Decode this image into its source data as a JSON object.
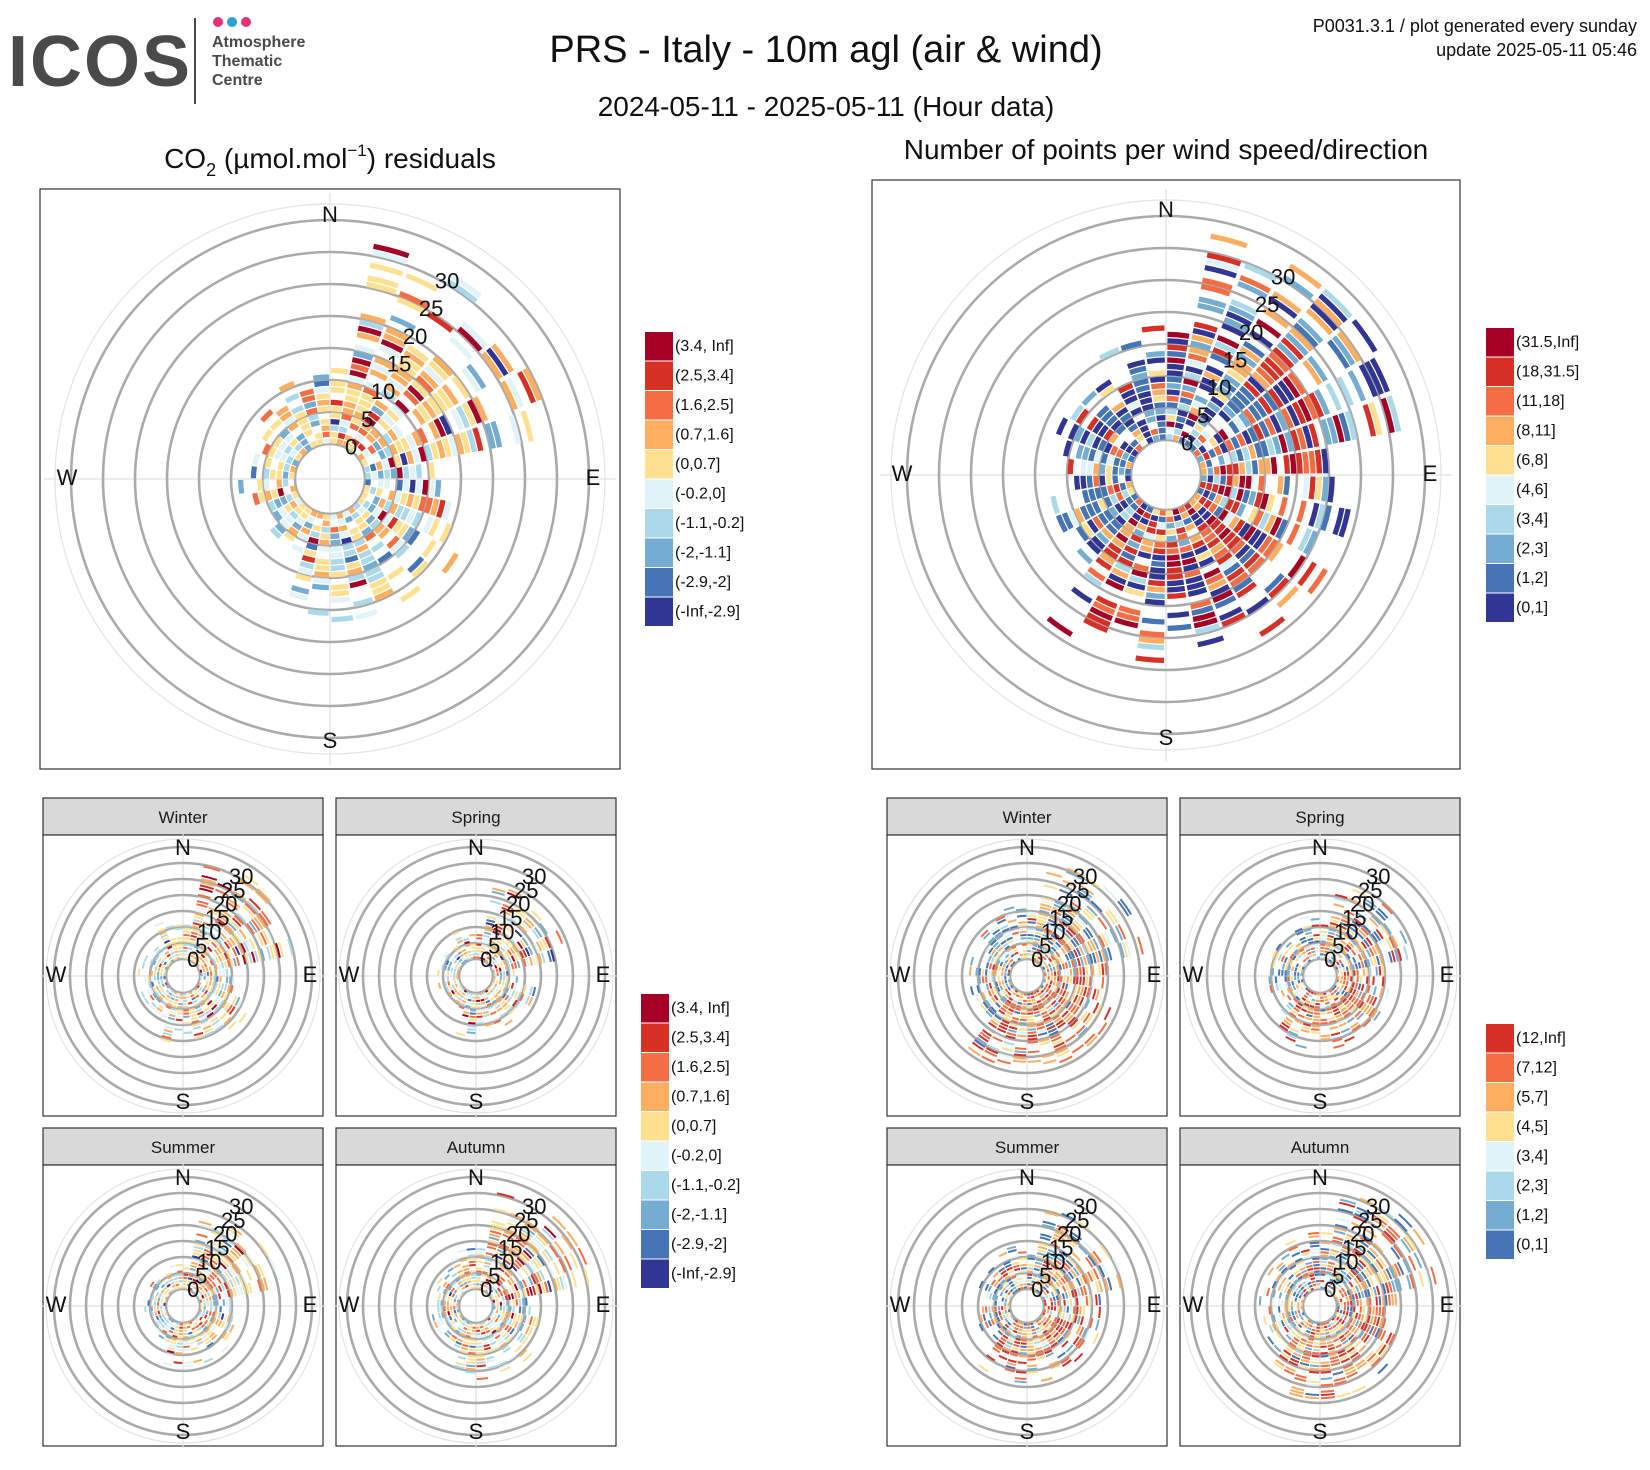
{
  "logo": {
    "word": "ICOS",
    "line1": "Atmosphere",
    "line2": "Thematic",
    "line3": "Centre",
    "dot_colors": [
      "#e5307a",
      "#2a9fd8",
      "#e5307a"
    ]
  },
  "header": {
    "title": "PRS - Italy - 10m agl (air & wind)",
    "subtitle": "2024-05-11 - 2025-05-11 (Hour data)",
    "info_line1": "P0031.3.1 / plot generated every sunday",
    "info_line2": "update  2025-05-11 05:46"
  },
  "panels": {
    "left_title_prefix": "CO",
    "left_title_sub": "2",
    "left_title_mid": " (µmol.mol",
    "left_title_sup": "−1",
    "left_title_suffix": ") residuals",
    "right_title": "Number of points per wind speed/direction"
  },
  "compass": {
    "n": "N",
    "e": "E",
    "s": "S",
    "w": "W"
  },
  "facets": [
    "Winter",
    "Spring",
    "Summer",
    "Autumn"
  ],
  "chart_data": [
    {
      "type": "polar-heatmap",
      "id": "co2-residuals-annual",
      "variable": "CO2 residuals",
      "radial_axis": "wind speed",
      "angular_axis": "wind direction",
      "radial_ticks": [
        0,
        5,
        10,
        15,
        20,
        25,
        30
      ],
      "legend": [
        {
          "label": "(3.4, Inf]",
          "color": "#a50026"
        },
        {
          "label": "(2.5,3.4]",
          "color": "#d73027"
        },
        {
          "label": "(1.6,2.5]",
          "color": "#f46d43"
        },
        {
          "label": "(0.7,1.6]",
          "color": "#fdae61"
        },
        {
          "label": "(0,0.7]",
          "color": "#fee090"
        },
        {
          "label": "(-0.2,0]",
          "color": "#e0f3f8"
        },
        {
          "label": "(-1.1,-0.2]",
          "color": "#abd9e9"
        },
        {
          "label": "(-2,-1.1]",
          "color": "#74add1"
        },
        {
          "label": "(-2.9,-2]",
          "color": "#4575b4"
        },
        {
          "label": "(-Inf,-2.9]",
          "color": "#313695"
        }
      ],
      "sectors": [
        {
          "dir": [
            10,
            80
          ],
          "max_speed": 32,
          "weights": [
            1,
            1,
            2,
            4,
            4,
            3,
            2,
            1,
            0.3,
            0.3
          ]
        },
        {
          "dir": [
            80,
            100
          ],
          "max_speed": 12,
          "weights": [
            0.2,
            0.3,
            0.4,
            0.6,
            2,
            2,
            3,
            2,
            1,
            0.3
          ]
        },
        {
          "dir": [
            100,
            200
          ],
          "max_speed": 18,
          "weights": [
            0.5,
            0.6,
            1,
            2,
            4,
            2,
            3,
            1,
            0.3,
            0.1
          ]
        },
        {
          "dir": [
            200,
            330
          ],
          "max_speed": 9,
          "weights": [
            0.1,
            0.2,
            0.6,
            2,
            2,
            2,
            3,
            2,
            0.4,
            0.1
          ]
        },
        {
          "dir": [
            330,
            370
          ],
          "max_speed": 13,
          "weights": [
            0.2,
            0.3,
            0.8,
            2,
            5,
            1,
            2,
            0.5,
            0.2,
            0.1
          ]
        }
      ]
    },
    {
      "type": "polar-heatmap",
      "id": "point-count-annual",
      "variable": "Number of points",
      "radial_axis": "wind speed",
      "angular_axis": "wind direction",
      "radial_ticks": [
        0,
        5,
        10,
        15,
        20,
        25,
        30
      ],
      "legend": [
        {
          "label": "(31.5,Inf]",
          "color": "#a50026"
        },
        {
          "label": "(18,31.5]",
          "color": "#d73027"
        },
        {
          "label": "(11,18]",
          "color": "#f46d43"
        },
        {
          "label": "(8,11]",
          "color": "#fdae61"
        },
        {
          "label": "(6,8]",
          "color": "#fee090"
        },
        {
          "label": "(4,6]",
          "color": "#e0f3f8"
        },
        {
          "label": "(3,4]",
          "color": "#abd9e9"
        },
        {
          "label": "(2,3]",
          "color": "#74add1"
        },
        {
          "label": "(1,2]",
          "color": "#4575b4"
        },
        {
          "label": "(0,1]",
          "color": "#313695"
        }
      ],
      "sectors": [
        {
          "dir": [
            10,
            80
          ],
          "max_speed": 33,
          "weights": [
            1,
            2,
            3,
            2,
            1,
            0.5,
            2,
            3,
            3,
            4
          ]
        },
        {
          "dir": [
            80,
            100
          ],
          "max_speed": 24,
          "weights": [
            3,
            3,
            2,
            2,
            1,
            0.5,
            1,
            1,
            1,
            2
          ]
        },
        {
          "dir": [
            100,
            220
          ],
          "max_speed": 24,
          "weights": [
            3,
            4,
            3,
            2,
            1,
            0.5,
            1,
            1,
            2,
            3
          ]
        },
        {
          "dir": [
            220,
            330
          ],
          "max_speed": 14,
          "weights": [
            0.3,
            0.5,
            1,
            1,
            1,
            0.5,
            1,
            2,
            4,
            4
          ]
        },
        {
          "dir": [
            330,
            370
          ],
          "max_speed": 18,
          "weights": [
            0.5,
            1,
            1,
            1,
            1,
            0.5,
            1,
            2,
            3,
            4
          ]
        }
      ]
    },
    {
      "type": "polar-heatmap-facets",
      "id": "co2-residuals-seasonal",
      "variable": "CO2 residuals",
      "facets": [
        "Winter",
        "Spring",
        "Summer",
        "Autumn"
      ],
      "radial_ticks": [
        0,
        5,
        10,
        15,
        20,
        25,
        30
      ],
      "legend": [
        {
          "label": "(3.4, Inf]",
          "color": "#a50026"
        },
        {
          "label": "(2.5,3.4]",
          "color": "#d73027"
        },
        {
          "label": "(1.6,2.5]",
          "color": "#f46d43"
        },
        {
          "label": "(0.7,1.6]",
          "color": "#fdae61"
        },
        {
          "label": "(0,0.7]",
          "color": "#fee090"
        },
        {
          "label": "(-0.2,0]",
          "color": "#e0f3f8"
        },
        {
          "label": "(-1.1,-0.2]",
          "color": "#abd9e9"
        },
        {
          "label": "(-2,-1.1]",
          "color": "#74add1"
        },
        {
          "label": "(-2.9,-2]",
          "color": "#4575b4"
        },
        {
          "label": "(-Inf,-2.9]",
          "color": "#313695"
        }
      ]
    },
    {
      "type": "polar-heatmap-facets",
      "id": "point-count-seasonal",
      "variable": "Number of points",
      "facets": [
        "Winter",
        "Spring",
        "Summer",
        "Autumn"
      ],
      "radial_ticks": [
        0,
        5,
        10,
        15,
        20,
        25,
        30
      ],
      "legend": [
        {
          "label": "(12,Inf]",
          "color": "#d73027"
        },
        {
          "label": "(7,12]",
          "color": "#f46d43"
        },
        {
          "label": "(5,7]",
          "color": "#fdae61"
        },
        {
          "label": "(4,5]",
          "color": "#fee090"
        },
        {
          "label": "(3,4]",
          "color": "#e0f3f8"
        },
        {
          "label": "(2,3]",
          "color": "#abd9e9"
        },
        {
          "label": "(1,2]",
          "color": "#74add1"
        },
        {
          "label": "(0,1]",
          "color": "#4575b4"
        }
      ]
    }
  ]
}
